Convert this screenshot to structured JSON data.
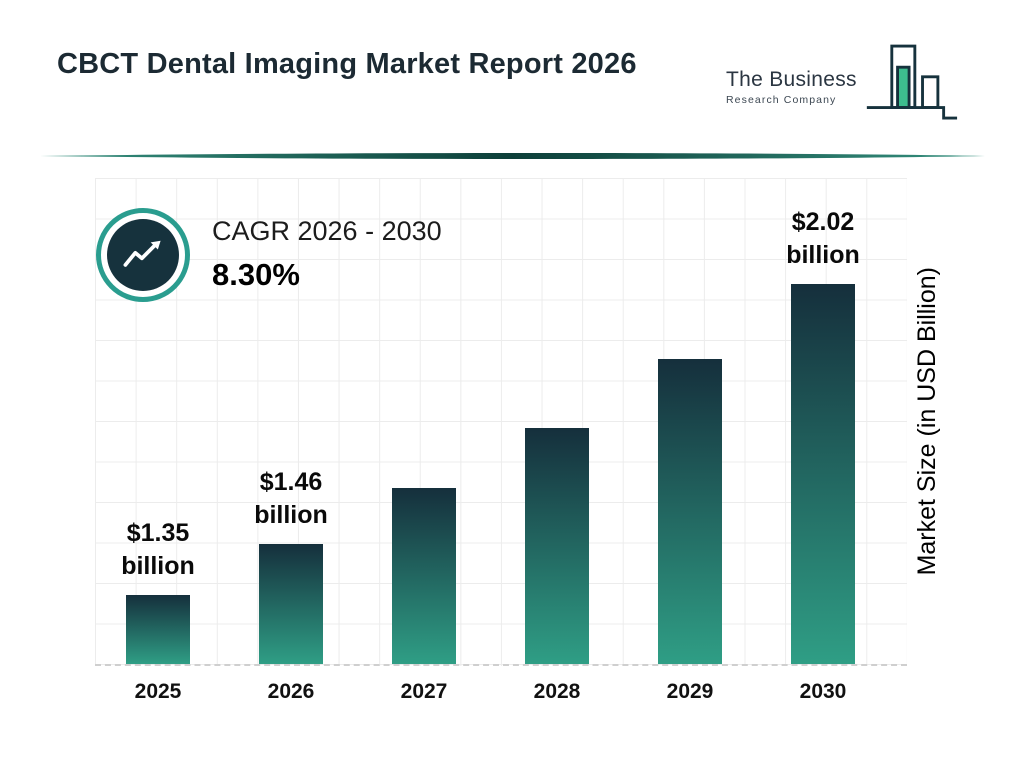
{
  "header": {
    "title": "CBCT Dental Imaging Market Report 2026",
    "logo": {
      "name_line1": "The Business",
      "name_line2": "Research Company"
    }
  },
  "cagr": {
    "label": "CAGR 2026 - 2030",
    "value": "8.30%"
  },
  "chart_data": {
    "type": "bar",
    "title": "CBCT Dental Imaging Market Report 2026",
    "categories": [
      "2025",
      "2026",
      "2027",
      "2028",
      "2029",
      "2030"
    ],
    "values": [
      1.35,
      1.46,
      1.58,
      1.71,
      1.86,
      2.02
    ],
    "bar_labels": [
      {
        "line1": "$1.35",
        "line2": "billion"
      },
      {
        "line1": "$1.46",
        "line2": "billion"
      },
      null,
      null,
      null,
      {
        "line1": "$2.02",
        "line2": "billion"
      }
    ],
    "xlabel": "",
    "ylabel": "Market Size (in USD Billion)",
    "ylim": [
      1.2,
      2.25
    ],
    "grid": true,
    "legend": false,
    "colors": {
      "bar_top": "#152f3c",
      "bar_bottom": "#2f9e85",
      "accent_teal": "#2a9d8f",
      "dark_navy": "#16323d",
      "logo_green": "#3dbd8e"
    }
  }
}
